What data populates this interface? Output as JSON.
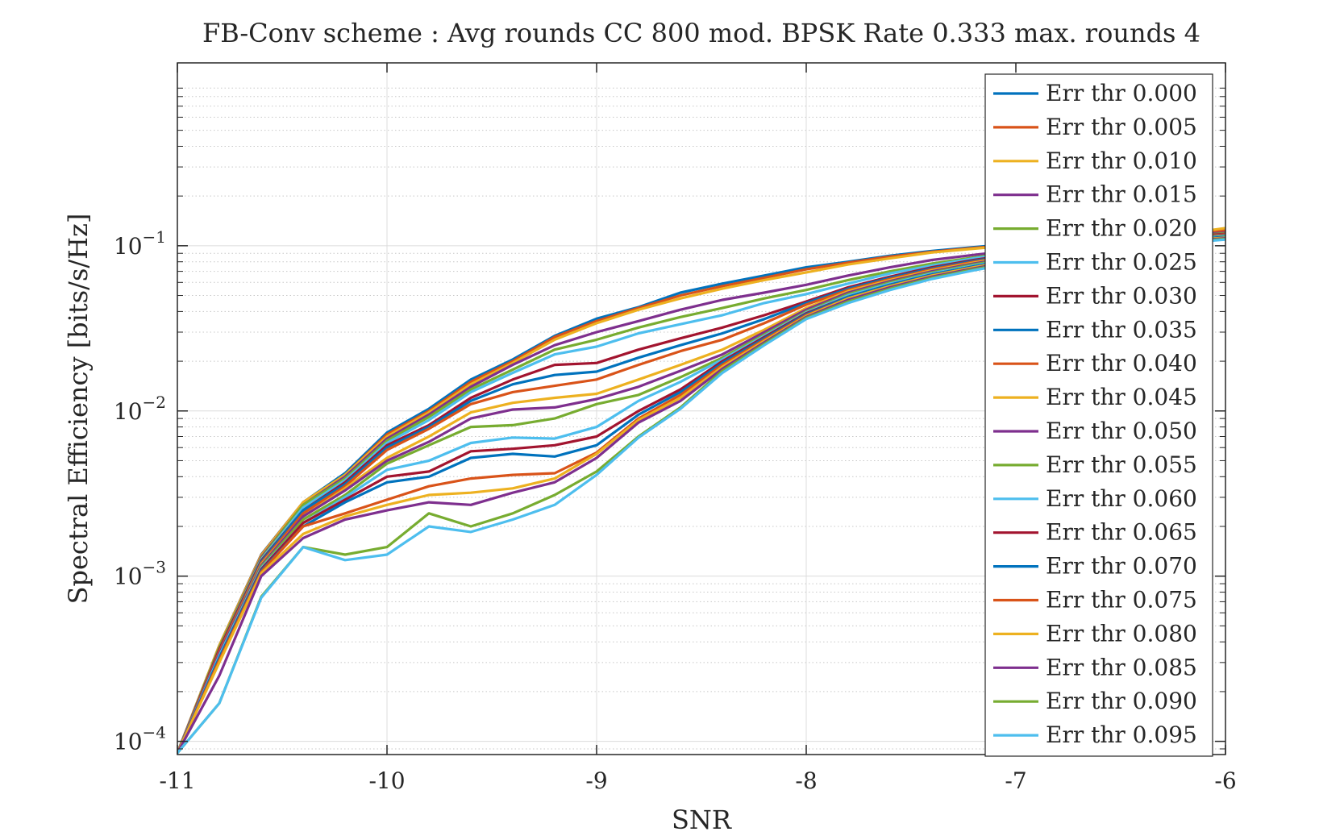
{
  "chart_data": {
    "type": "line",
    "title": "FB-Conv scheme : Avg rounds CC 800 mod. BPSK Rate 0.333 max. rounds 4",
    "xlabel": "SNR",
    "ylabel": "Spectral Efficiency [bits/s/Hz]",
    "xlim": [
      -11,
      -6
    ],
    "ylim_log10": [
      -4.08,
      0.107
    ],
    "yscale": "log",
    "grid": true,
    "legend_position": "top-right",
    "x_ticks": [
      -11,
      -10,
      -9,
      -8,
      -7,
      -6
    ],
    "x_tick_labels": [
      "-11",
      "-10",
      "-9",
      "-8",
      "-7",
      "-6"
    ],
    "y_ticks": [
      {
        "exp": -4,
        "base": "10",
        "power": "−4"
      },
      {
        "exp": -3,
        "base": "10",
        "power": "−3"
      },
      {
        "exp": -2,
        "base": "10",
        "power": "−2"
      },
      {
        "exp": -1,
        "base": "10",
        "power": "−1"
      }
    ],
    "x": [
      -11,
      -10.8,
      -10.6,
      -10.4,
      -10.2,
      -10,
      -9.8,
      -9.6,
      -9.4,
      -9.2,
      -9,
      -8.8,
      -8.6,
      -8.4,
      -8.2,
      -8,
      -7.8,
      -7.6,
      -7.4,
      -7.2,
      -7,
      -6.8,
      -6.6,
      -6.4,
      -6.2,
      -6
    ],
    "series": [
      {
        "name": "Err thr 0.000",
        "color": "#0072BD",
        "values": [
          8.5e-05,
          0.00038,
          0.00135,
          0.0028,
          0.0042,
          0.0074,
          0.0103,
          0.0155,
          0.0205,
          0.0285,
          0.0362,
          0.0425,
          0.052,
          0.059,
          0.066,
          0.074,
          0.08,
          0.087,
          0.093,
          0.098,
          0.103,
          0.108,
          0.112,
          0.116,
          0.12,
          0.124
        ]
      },
      {
        "name": "Err thr 0.005",
        "color": "#D95319",
        "values": [
          8.5e-05,
          0.00038,
          0.00134,
          0.0028,
          0.0041,
          0.0072,
          0.01,
          0.015,
          0.02,
          0.028,
          0.035,
          0.042,
          0.05,
          0.057,
          0.064,
          0.072,
          0.079,
          0.086,
          0.092,
          0.097,
          0.102,
          0.107,
          0.111,
          0.115,
          0.119,
          0.124
        ]
      },
      {
        "name": "Err thr 0.010",
        "color": "#EDB120",
        "values": [
          8.5e-05,
          0.00038,
          0.00133,
          0.0028,
          0.0041,
          0.007,
          0.0098,
          0.0145,
          0.0195,
          0.027,
          0.034,
          0.041,
          0.048,
          0.055,
          0.062,
          0.069,
          0.077,
          0.084,
          0.091,
          0.096,
          0.101,
          0.106,
          0.11,
          0.114,
          0.118,
          0.128
        ]
      },
      {
        "name": "Err thr 0.015",
        "color": "#7E2F8E",
        "values": [
          8.5e-05,
          0.00037,
          0.0013,
          0.0027,
          0.004,
          0.0068,
          0.0095,
          0.014,
          0.019,
          0.025,
          0.03,
          0.035,
          0.041,
          0.047,
          0.052,
          0.058,
          0.066,
          0.074,
          0.082,
          0.088,
          0.094,
          0.1,
          0.106,
          0.111,
          0.116,
          0.12
        ]
      },
      {
        "name": "Err thr 0.020",
        "color": "#77AC30",
        "values": [
          8.5e-05,
          0.00037,
          0.00128,
          0.0027,
          0.0039,
          0.0066,
          0.0092,
          0.0135,
          0.0178,
          0.0235,
          0.027,
          0.032,
          0.037,
          0.042,
          0.048,
          0.054,
          0.062,
          0.07,
          0.078,
          0.085,
          0.092,
          0.098,
          0.104,
          0.109,
          0.114,
          0.119
        ]
      },
      {
        "name": "Err thr 0.025",
        "color": "#4DBEEE",
        "values": [
          8.5e-05,
          0.00036,
          0.00126,
          0.0026,
          0.0038,
          0.0064,
          0.0088,
          0.013,
          0.017,
          0.022,
          0.0245,
          0.0295,
          0.0335,
          0.038,
          0.045,
          0.051,
          0.059,
          0.068,
          0.076,
          0.084,
          0.091,
          0.097,
          0.103,
          0.108,
          0.113,
          0.118
        ]
      },
      {
        "name": "Err thr 0.030",
        "color": "#A2142F",
        "values": [
          8.5e-05,
          0.00036,
          0.00124,
          0.0025,
          0.0037,
          0.0062,
          0.0082,
          0.012,
          0.0155,
          0.019,
          0.0195,
          0.0235,
          0.0275,
          0.032,
          0.038,
          0.046,
          0.056,
          0.065,
          0.074,
          0.082,
          0.089,
          0.096,
          0.102,
          0.108,
          0.113,
          0.118
        ]
      },
      {
        "name": "Err thr 0.035",
        "color": "#0072BD",
        "values": [
          8.5e-05,
          0.00035,
          0.00122,
          0.0025,
          0.0036,
          0.006,
          0.008,
          0.0115,
          0.0145,
          0.0165,
          0.0173,
          0.021,
          0.025,
          0.0295,
          0.036,
          0.045,
          0.055,
          0.064,
          0.073,
          0.081,
          0.088,
          0.095,
          0.101,
          0.107,
          0.112,
          0.117
        ]
      },
      {
        "name": "Err thr 0.040",
        "color": "#D95319",
        "values": [
          8.5e-05,
          0.00035,
          0.0012,
          0.0024,
          0.0035,
          0.0058,
          0.0078,
          0.011,
          0.013,
          0.0142,
          0.0155,
          0.019,
          0.023,
          0.027,
          0.034,
          0.044,
          0.054,
          0.063,
          0.072,
          0.08,
          0.087,
          0.094,
          0.101,
          0.107,
          0.112,
          0.117
        ]
      },
      {
        "name": "Err thr 0.045",
        "color": "#EDB120",
        "values": [
          8.5e-05,
          0.00034,
          0.00118,
          0.0023,
          0.0034,
          0.0052,
          0.007,
          0.0098,
          0.0112,
          0.012,
          0.0127,
          0.0155,
          0.019,
          0.0235,
          0.031,
          0.042,
          0.053,
          0.062,
          0.071,
          0.079,
          0.087,
          0.094,
          0.1,
          0.106,
          0.111,
          0.116
        ]
      },
      {
        "name": "Err thr 0.050",
        "color": "#7E2F8E",
        "values": [
          8.5e-05,
          0.00034,
          0.00116,
          0.0023,
          0.0033,
          0.005,
          0.0065,
          0.009,
          0.0102,
          0.0105,
          0.0118,
          0.014,
          0.0175,
          0.022,
          0.03,
          0.041,
          0.052,
          0.061,
          0.07,
          0.078,
          0.086,
          0.093,
          0.1,
          0.106,
          0.111,
          0.116
        ]
      },
      {
        "name": "Err thr 0.055",
        "color": "#77AC30",
        "values": [
          8.5e-05,
          0.00033,
          0.00114,
          0.0022,
          0.0031,
          0.0048,
          0.0062,
          0.008,
          0.0082,
          0.009,
          0.011,
          0.0125,
          0.016,
          0.021,
          0.029,
          0.04,
          0.051,
          0.06,
          0.069,
          0.077,
          0.085,
          0.092,
          0.099,
          0.105,
          0.11,
          0.115
        ]
      },
      {
        "name": "Err thr 0.060",
        "color": "#4DBEEE",
        "values": [
          8.5e-05,
          0.00033,
          0.00112,
          0.0021,
          0.003,
          0.0044,
          0.005,
          0.0064,
          0.0069,
          0.0068,
          0.008,
          0.0115,
          0.015,
          0.0205,
          0.0285,
          0.0395,
          0.05,
          0.059,
          0.068,
          0.076,
          0.084,
          0.091,
          0.098,
          0.104,
          0.109,
          0.114
        ]
      },
      {
        "name": "Err thr 0.065",
        "color": "#A2142F",
        "values": [
          8.5e-05,
          0.00032,
          0.0011,
          0.0021,
          0.0029,
          0.004,
          0.0043,
          0.0057,
          0.0059,
          0.0062,
          0.007,
          0.01,
          0.0135,
          0.02,
          0.028,
          0.039,
          0.049,
          0.058,
          0.067,
          0.075,
          0.083,
          0.09,
          0.097,
          0.103,
          0.108,
          0.113
        ]
      },
      {
        "name": "Err thr 0.070",
        "color": "#0072BD",
        "values": [
          8.5e-05,
          0.00032,
          0.00108,
          0.002,
          0.0028,
          0.0037,
          0.004,
          0.0052,
          0.0055,
          0.0053,
          0.0062,
          0.0095,
          0.013,
          0.0195,
          0.0275,
          0.0385,
          0.049,
          0.058,
          0.067,
          0.075,
          0.083,
          0.09,
          0.097,
          0.103,
          0.108,
          0.113
        ]
      },
      {
        "name": "Err thr 0.075",
        "color": "#D95319",
        "values": [
          8.5e-05,
          0.00031,
          0.00106,
          0.002,
          0.0024,
          0.0029,
          0.0035,
          0.0039,
          0.0041,
          0.0042,
          0.0056,
          0.009,
          0.0125,
          0.019,
          0.027,
          0.038,
          0.048,
          0.057,
          0.066,
          0.074,
          0.082,
          0.089,
          0.096,
          0.102,
          0.107,
          0.112
        ]
      },
      {
        "name": "Err thr 0.080",
        "color": "#EDB120",
        "values": [
          8.5e-05,
          0.0003,
          0.00104,
          0.0018,
          0.0023,
          0.0027,
          0.0031,
          0.0032,
          0.0034,
          0.0039,
          0.0055,
          0.0088,
          0.012,
          0.0185,
          0.0265,
          0.0375,
          0.048,
          0.057,
          0.066,
          0.074,
          0.082,
          0.089,
          0.096,
          0.102,
          0.107,
          0.112
        ]
      },
      {
        "name": "Err thr 0.085",
        "color": "#7E2F8E",
        "values": [
          8.5e-05,
          0.00025,
          0.001,
          0.0017,
          0.0022,
          0.0025,
          0.0028,
          0.0027,
          0.0032,
          0.0037,
          0.0052,
          0.0085,
          0.0115,
          0.018,
          0.026,
          0.037,
          0.047,
          0.056,
          0.065,
          0.073,
          0.081,
          0.088,
          0.095,
          0.101,
          0.106,
          0.111
        ]
      },
      {
        "name": "Err thr 0.090",
        "color": "#77AC30",
        "values": [
          8.5e-05,
          0.00017,
          0.00075,
          0.0015,
          0.00135,
          0.0015,
          0.0024,
          0.002,
          0.0024,
          0.0031,
          0.0043,
          0.007,
          0.0105,
          0.0175,
          0.0255,
          0.0365,
          0.046,
          0.055,
          0.064,
          0.072,
          0.08,
          0.087,
          0.094,
          0.1,
          0.105,
          0.11
        ]
      },
      {
        "name": "Err thr 0.095",
        "color": "#4DBEEE",
        "values": [
          8.5e-05,
          0.00017,
          0.00074,
          0.0015,
          0.00125,
          0.00135,
          0.002,
          0.00185,
          0.0022,
          0.0027,
          0.0041,
          0.0069,
          0.0103,
          0.017,
          0.025,
          0.036,
          0.045,
          0.054,
          0.063,
          0.071,
          0.079,
          0.086,
          0.093,
          0.099,
          0.104,
          0.109
        ]
      }
    ]
  }
}
